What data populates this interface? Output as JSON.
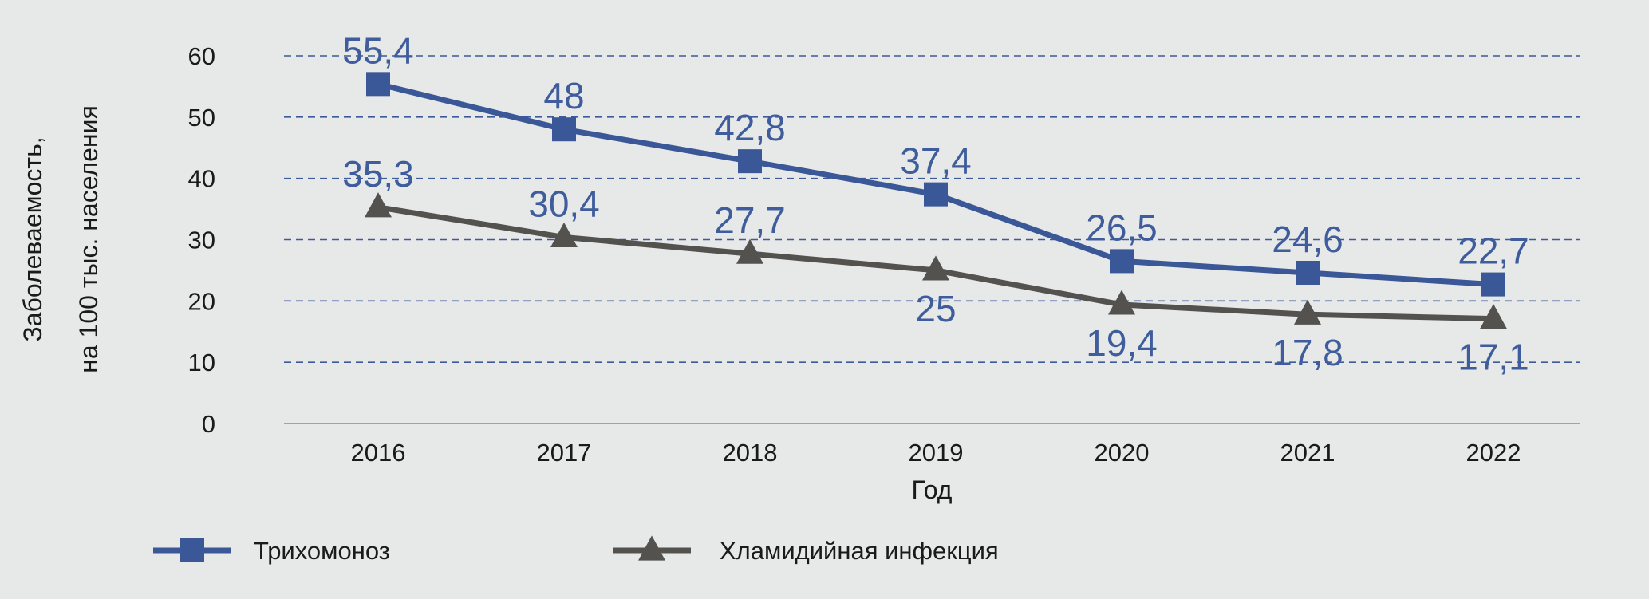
{
  "chart_data": {
    "type": "line",
    "categories": [
      "2016",
      "2017",
      "2018",
      "2019",
      "2020",
      "2021",
      "2022"
    ],
    "xlabel": "Год",
    "ylabel": [
      "Заболеваемость,",
      "на 100 тыс. населения"
    ],
    "ylim": [
      0,
      60
    ],
    "yticks": [
      0,
      10,
      20,
      30,
      40,
      50,
      60
    ],
    "grid": "horizontal dashed",
    "legend_position": "bottom",
    "series": [
      {
        "name": "Трихомоноз",
        "values": [
          55.4,
          48,
          42.8,
          37.4,
          26.5,
          24.6,
          22.7
        ],
        "labels": [
          "55,4",
          "48",
          "42,8",
          "37,4",
          "26,5",
          "24,6",
          "22,7"
        ],
        "color": "#3a5897",
        "label_color": "#3f5d9c",
        "marker": "square",
        "label_placement": [
          "above",
          "above",
          "above",
          "above",
          "above",
          "above",
          "above"
        ]
      },
      {
        "name": "Хламидийная инфекция",
        "values": [
          35.3,
          30.4,
          27.7,
          25,
          19.4,
          17.8,
          17.1
        ],
        "labels": [
          "35,3",
          "30,4",
          "27,7",
          "25",
          "19,4",
          "17,8",
          "17,1"
        ],
        "color": "#54524f",
        "label_color": "#3f5d9c",
        "marker": "triangle",
        "label_placement": [
          "above",
          "above",
          "above",
          "below",
          "below",
          "below",
          "below"
        ]
      }
    ]
  }
}
